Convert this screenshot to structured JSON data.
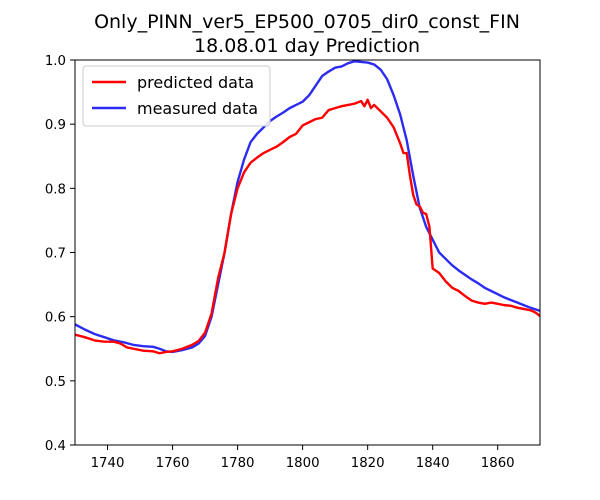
{
  "chart_data": {
    "type": "line",
    "title_line1": "Only_PINN_ver5_EP500_0705_dir0_const_FIN",
    "title_line2": "18.08.01 day Prediction",
    "xlabel": "",
    "ylabel": "",
    "xlim": [
      1730,
      1873
    ],
    "ylim": [
      0.4,
      1.0
    ],
    "x_ticks": [
      1740,
      1760,
      1780,
      1800,
      1820,
      1840,
      1860
    ],
    "y_ticks": [
      0.4,
      0.5,
      0.6,
      0.7,
      0.8,
      0.9,
      1.0
    ],
    "x_tick_labels": [
      "1740",
      "1760",
      "1780",
      "1800",
      "1820",
      "1840",
      "1860"
    ],
    "y_tick_labels": [
      "0.4",
      "0.5",
      "0.6",
      "0.7",
      "0.8",
      "0.9",
      "1.0"
    ],
    "grid": false,
    "legend_position": "top-left",
    "series": [
      {
        "name": "predicted data",
        "color": "#ff0000",
        "x": [
          1730,
          1733,
          1736,
          1739,
          1742,
          1744,
          1746,
          1748,
          1751,
          1754,
          1756,
          1758,
          1760,
          1763,
          1766,
          1768,
          1770,
          1772,
          1774,
          1776,
          1778,
          1780,
          1782,
          1784,
          1786,
          1788,
          1790,
          1792,
          1794,
          1796,
          1798,
          1800,
          1802,
          1804,
          1806,
          1808,
          1810,
          1812,
          1814,
          1816,
          1818,
          1819,
          1820,
          1821,
          1822,
          1824,
          1826,
          1828,
          1830,
          1831,
          1832,
          1833,
          1834,
          1835,
          1836,
          1837,
          1838,
          1839,
          1840,
          1842,
          1844,
          1846,
          1848,
          1850,
          1852,
          1854,
          1856,
          1858,
          1860,
          1862,
          1864,
          1866,
          1868,
          1870,
          1871,
          1872,
          1873
        ],
        "y": [
          0.572,
          0.568,
          0.563,
          0.561,
          0.561,
          0.558,
          0.552,
          0.55,
          0.547,
          0.546,
          0.543,
          0.545,
          0.546,
          0.55,
          0.556,
          0.562,
          0.575,
          0.605,
          0.66,
          0.7,
          0.76,
          0.8,
          0.825,
          0.84,
          0.848,
          0.855,
          0.86,
          0.865,
          0.872,
          0.88,
          0.885,
          0.898,
          0.903,
          0.908,
          0.91,
          0.922,
          0.925,
          0.928,
          0.93,
          0.932,
          0.936,
          0.928,
          0.938,
          0.925,
          0.93,
          0.92,
          0.91,
          0.895,
          0.87,
          0.855,
          0.855,
          0.82,
          0.79,
          0.775,
          0.772,
          0.762,
          0.76,
          0.74,
          0.675,
          0.668,
          0.655,
          0.645,
          0.64,
          0.632,
          0.625,
          0.622,
          0.62,
          0.622,
          0.62,
          0.618,
          0.617,
          0.614,
          0.612,
          0.61,
          0.608,
          0.605,
          0.601
        ]
      },
      {
        "name": "measured data",
        "color": "#2b2bf2",
        "x": [
          1730,
          1733,
          1736,
          1739,
          1742,
          1745,
          1748,
          1751,
          1754,
          1756,
          1758,
          1760,
          1763,
          1766,
          1768,
          1770,
          1772,
          1774,
          1776,
          1778,
          1780,
          1782,
          1784,
          1786,
          1788,
          1790,
          1792,
          1794,
          1796,
          1798,
          1800,
          1802,
          1804,
          1806,
          1808,
          1810,
          1812,
          1814,
          1816,
          1818,
          1820,
          1822,
          1824,
          1826,
          1828,
          1830,
          1832,
          1834,
          1836,
          1838,
          1840,
          1842,
          1844,
          1846,
          1848,
          1850,
          1852,
          1854,
          1856,
          1858,
          1860,
          1862,
          1864,
          1866,
          1868,
          1870,
          1873
        ],
        "y": [
          0.588,
          0.58,
          0.573,
          0.568,
          0.563,
          0.56,
          0.556,
          0.554,
          0.553,
          0.55,
          0.546,
          0.545,
          0.548,
          0.552,
          0.558,
          0.57,
          0.6,
          0.65,
          0.7,
          0.76,
          0.81,
          0.845,
          0.872,
          0.885,
          0.895,
          0.905,
          0.912,
          0.918,
          0.925,
          0.93,
          0.935,
          0.945,
          0.96,
          0.975,
          0.982,
          0.988,
          0.99,
          0.995,
          0.998,
          0.997,
          0.996,
          0.993,
          0.985,
          0.97,
          0.945,
          0.915,
          0.875,
          0.82,
          0.77,
          0.74,
          0.72,
          0.7,
          0.69,
          0.68,
          0.672,
          0.665,
          0.658,
          0.652,
          0.645,
          0.64,
          0.635,
          0.63,
          0.626,
          0.622,
          0.618,
          0.614,
          0.609
        ]
      }
    ]
  }
}
